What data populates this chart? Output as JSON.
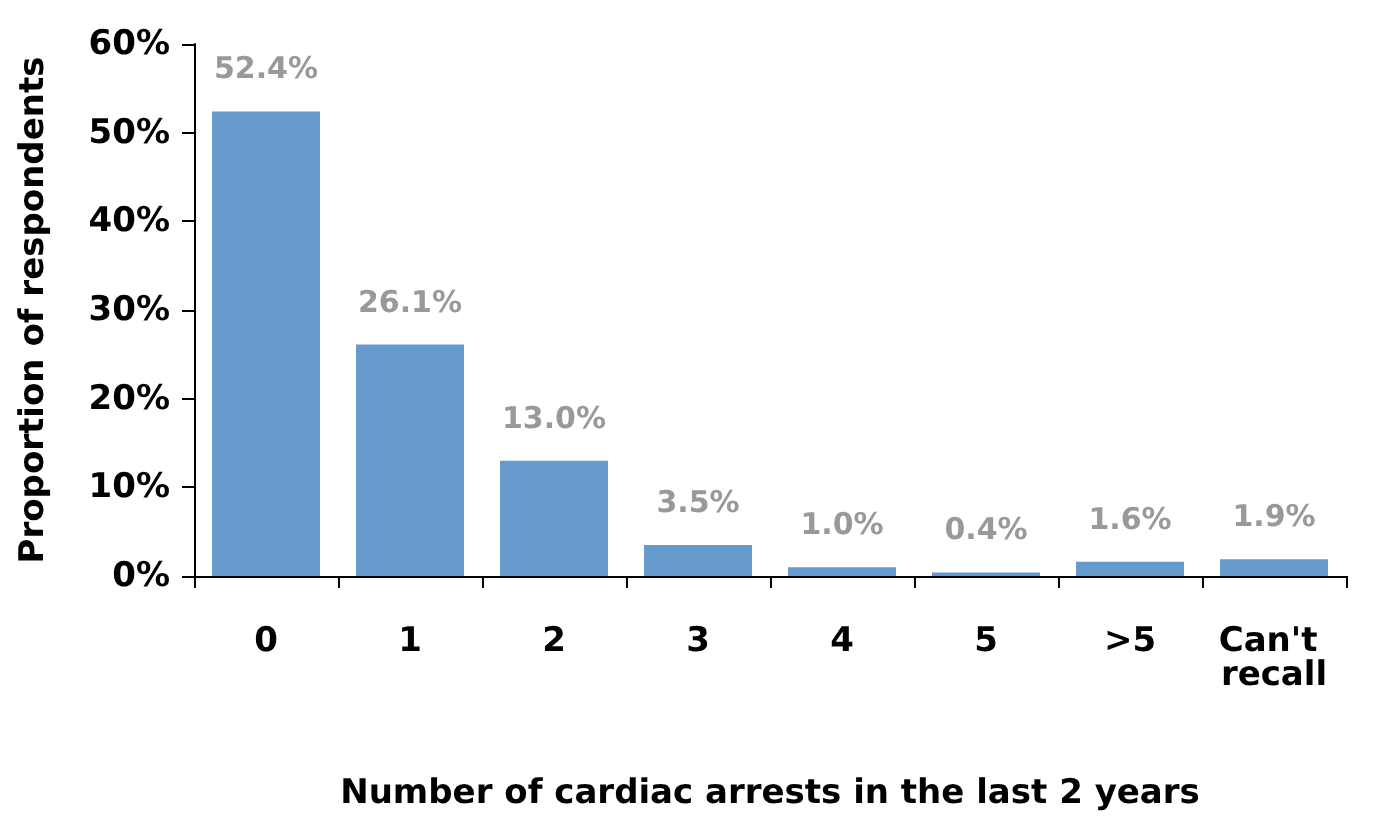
{
  "chart_data": {
    "type": "bar",
    "xlabel": "Number of cardiac arrests in the last 2 years",
    "ylabel": "Proportion of respondents",
    "categories": [
      "0",
      "1",
      "2",
      "3",
      "4",
      "5",
      ">5",
      "Can't recall"
    ],
    "values": [
      52.4,
      26.1,
      13.0,
      3.5,
      1.0,
      0.4,
      1.6,
      1.9
    ],
    "value_labels": [
      "52.4%",
      "26.1%",
      "13.0%",
      "3.5%",
      "1.0%",
      "0.4%",
      "1.6%",
      "1.9%"
    ],
    "color": "#6699cc",
    "ylim": [
      0,
      60
    ],
    "yticks": [
      {
        "value": 0,
        "label": "0%"
      },
      {
        "value": 10,
        "label": "10%"
      },
      {
        "value": 20,
        "label": "20%"
      },
      {
        "value": 30,
        "label": "30%"
      },
      {
        "value": 40,
        "label": "40%"
      },
      {
        "value": 50,
        "label": "50%"
      },
      {
        "value": 60,
        "label": "60%"
      }
    ],
    "grid": false
  }
}
